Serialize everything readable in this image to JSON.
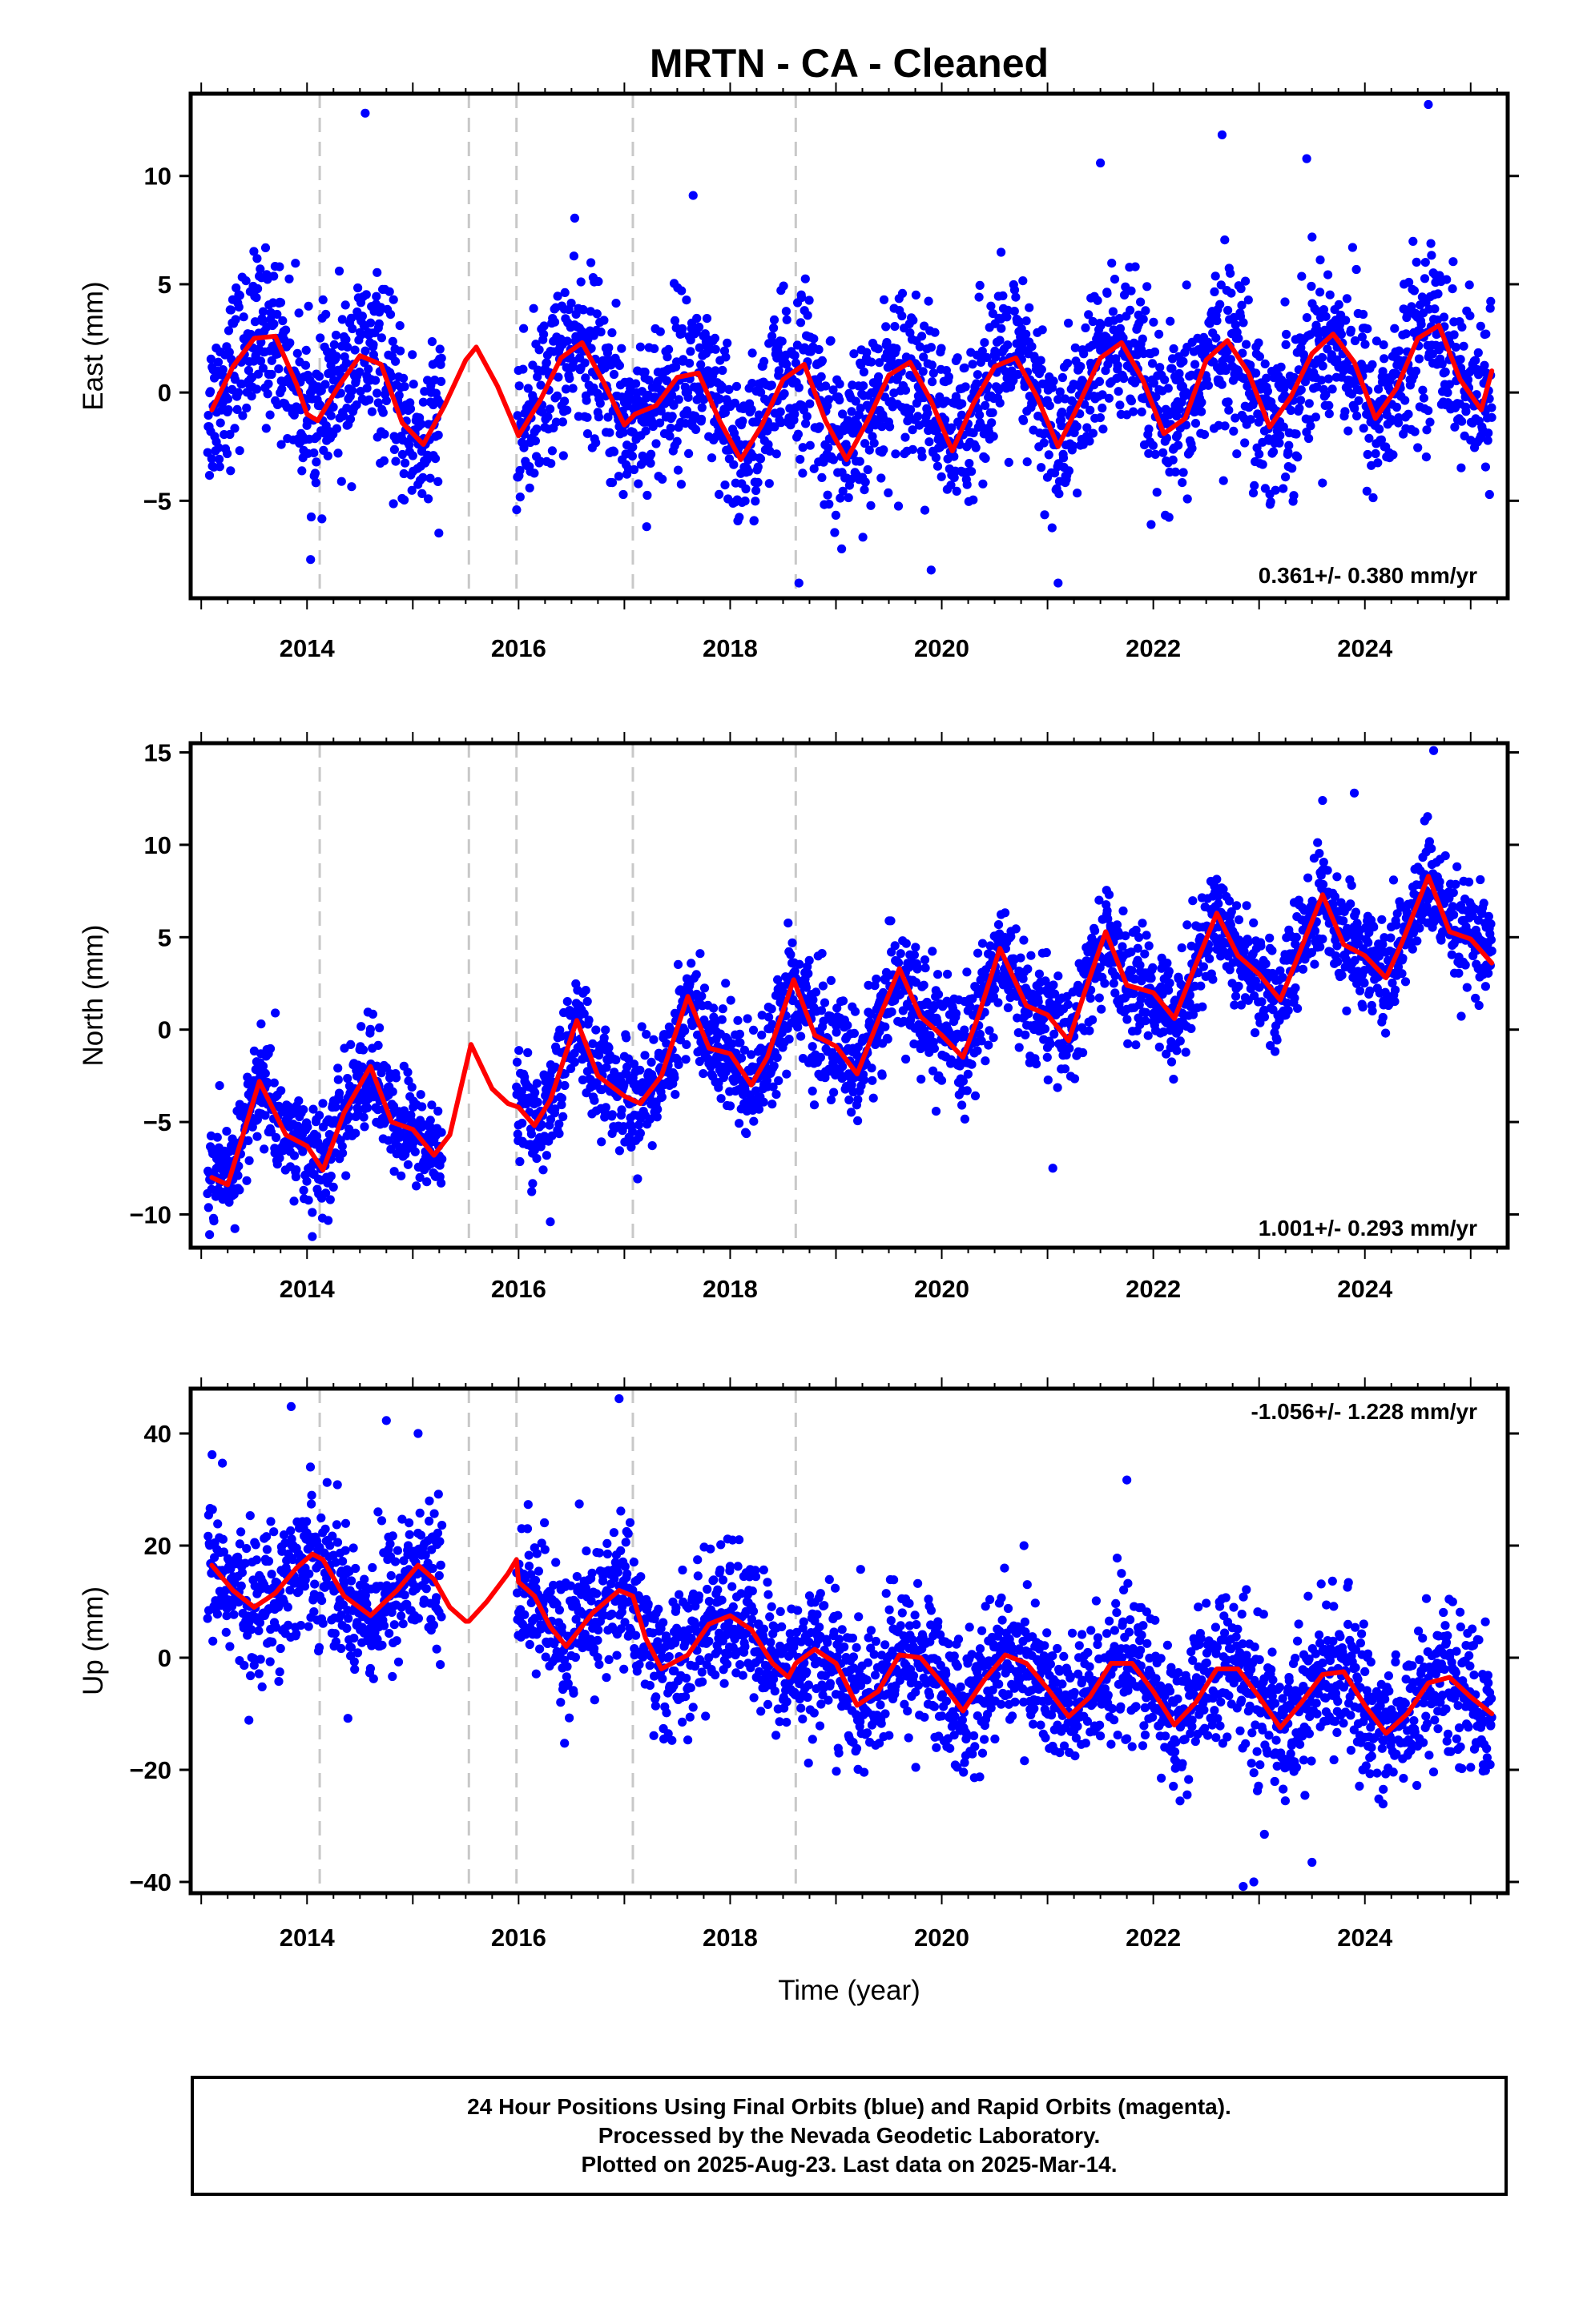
{
  "title": "MRTN  - CA - Cleaned",
  "xlabel": "Time (year)",
  "caption": [
    "24 Hour Positions Using Final Orbits (blue) and Rapid Orbits (magenta).",
    "Processed by the Nevada Geodetic Laboratory.",
    "Plotted on 2025-Aug-23. Last data on 2025-Mar-14."
  ],
  "colors": {
    "points": "#0000ff",
    "fit": "#ff0000",
    "breaks": "#c8c8c8",
    "frame": "#000000"
  },
  "chart_data": [
    {
      "type": "scatter",
      "ylabel": "East (mm)",
      "rate_label": "0.361+/- 0.380 mm/yr",
      "xlim": [
        2012.9,
        2025.35
      ],
      "ylim": [
        -9.5,
        13.8
      ],
      "yticks": [
        -5,
        0,
        5,
        10
      ],
      "ytick_labels": [
        "−5",
        "0",
        "5",
        "10"
      ],
      "xticks": [
        2014,
        2016,
        2018,
        2020,
        2022,
        2024
      ],
      "xtick_labels": [
        "2014",
        "2016",
        "2018",
        "2020",
        "2022",
        "2024"
      ],
      "breaks": [
        2014.12,
        2015.53,
        2015.98,
        2017.08,
        2018.62
      ],
      "fit": {
        "x": [
          2013.1,
          2013.3,
          2013.5,
          2013.7,
          2013.9,
          2014.0,
          2014.1,
          2014.3,
          2014.5,
          2014.7,
          2014.9,
          2015.1,
          2015.3,
          2015.5,
          2015.6,
          2015.8,
          2016.0,
          2016.2,
          2016.4,
          2016.6,
          2016.8,
          2017.0,
          2017.1,
          2017.3,
          2017.5,
          2017.7,
          2017.9,
          2018.1,
          2018.3,
          2018.5,
          2018.7,
          2018.9,
          2019.1,
          2019.3,
          2019.5,
          2019.7,
          2019.9,
          2020.1,
          2020.3,
          2020.5,
          2020.7,
          2020.9,
          2021.1,
          2021.3,
          2021.5,
          2021.7,
          2021.9,
          2022.1,
          2022.3,
          2022.5,
          2022.7,
          2022.9,
          2023.1,
          2023.3,
          2023.5,
          2023.7,
          2023.9,
          2024.1,
          2024.3,
          2024.5,
          2024.7,
          2024.9,
          2025.1,
          2025.2
        ],
        "y": [
          -0.8,
          1.2,
          2.5,
          2.6,
          0.4,
          -1.0,
          -1.3,
          0.3,
          1.7,
          1.3,
          -1.4,
          -2.4,
          -0.6,
          1.5,
          2.1,
          0.3,
          -2.0,
          -0.4,
          1.6,
          2.3,
          0.5,
          -1.5,
          -1.0,
          -0.6,
          0.7,
          0.9,
          -1.3,
          -3.1,
          -1.5,
          0.6,
          1.3,
          -1.3,
          -3.1,
          -1.3,
          0.8,
          1.4,
          -0.4,
          -2.7,
          -0.5,
          1.2,
          1.6,
          -0.2,
          -2.5,
          -0.5,
          1.6,
          2.3,
          0.6,
          -1.9,
          -1.2,
          1.5,
          2.4,
          0.9,
          -1.6,
          -0.2,
          1.8,
          2.7,
          1.4,
          -1.2,
          0.2,
          2.5,
          3.1,
          0.6,
          -0.8,
          1.0
        ]
      },
      "scatter": {
        "count": 2900,
        "noise_sd": 1.9,
        "first": 2013.06,
        "last": 2025.2,
        "gap": [
          2015.28,
          2015.98
        ],
        "outliers": [
          [
            2014.55,
            12.9
          ],
          [
            2021.5,
            10.6
          ],
          [
            2022.65,
            11.9
          ],
          [
            2024.6,
            13.3
          ],
          [
            2023.45,
            10.8
          ],
          [
            2017.65,
            9.1
          ],
          [
            2018.65,
            -8.8
          ],
          [
            2021.1,
            -8.8
          ],
          [
            2019.9,
            -8.2
          ]
        ]
      }
    },
    {
      "type": "scatter",
      "ylabel": "North (mm)",
      "rate_label": "1.001+/- 0.293 mm/yr",
      "xlim": [
        2012.9,
        2025.35
      ],
      "ylim": [
        -11.8,
        15.5
      ],
      "yticks": [
        -10,
        -5,
        0,
        5,
        10,
        15
      ],
      "ytick_labels": [
        "−10",
        "−5",
        "0",
        "5",
        "10",
        "15"
      ],
      "xticks": [
        2014,
        2016,
        2018,
        2020,
        2022,
        2024
      ],
      "xtick_labels": [
        "2014",
        "2016",
        "2018",
        "2020",
        "2022",
        "2024"
      ],
      "breaks": [
        2014.12,
        2015.53,
        2015.98,
        2017.08,
        2018.62
      ],
      "fit": {
        "x": [
          2013.1,
          2013.25,
          2013.55,
          2013.8,
          2014.0,
          2014.15,
          2014.35,
          2014.6,
          2014.8,
          2015.0,
          2015.2,
          2015.35,
          2015.55,
          2015.75,
          2015.9,
          2016.0,
          2016.15,
          2016.3,
          2016.55,
          2016.75,
          2017.0,
          2017.15,
          2017.35,
          2017.6,
          2017.8,
          2018.0,
          2018.2,
          2018.35,
          2018.6,
          2018.8,
          2019.0,
          2019.2,
          2019.4,
          2019.6,
          2019.8,
          2020.0,
          2020.2,
          2020.35,
          2020.55,
          2020.8,
          2021.0,
          2021.2,
          2021.35,
          2021.55,
          2021.75,
          2022.0,
          2022.2,
          2022.35,
          2022.6,
          2022.8,
          2023.0,
          2023.2,
          2023.35,
          2023.6,
          2023.8,
          2024.0,
          2024.2,
          2024.35,
          2024.6,
          2024.8,
          2025.0,
          2025.2
        ],
        "y": [
          -8.0,
          -8.4,
          -2.8,
          -5.7,
          -6.3,
          -7.6,
          -4.5,
          -2.0,
          -5.0,
          -5.4,
          -6.8,
          -5.7,
          -0.8,
          -3.2,
          -4.0,
          -4.2,
          -5.2,
          -3.8,
          0.5,
          -2.5,
          -3.6,
          -4.0,
          -2.5,
          1.8,
          -1.0,
          -1.3,
          -3.0,
          -1.5,
          2.7,
          -0.3,
          -0.9,
          -2.4,
          0.5,
          3.3,
          0.7,
          -0.3,
          -1.5,
          0.8,
          4.4,
          1.3,
          0.8,
          -0.6,
          2.0,
          5.3,
          2.4,
          2.0,
          0.6,
          2.8,
          6.3,
          4.0,
          3.0,
          1.6,
          3.7,
          7.3,
          4.6,
          4.0,
          2.8,
          4.7,
          8.3,
          5.3,
          4.9,
          3.6
        ]
      },
      "scatter": {
        "count": 2900,
        "noise_sd": 1.45,
        "first": 2013.06,
        "last": 2025.2,
        "gap": [
          2015.28,
          2015.98
        ],
        "outliers": [
          [
            2024.65,
            15.1
          ],
          [
            2023.9,
            12.8
          ],
          [
            2023.6,
            12.4
          ],
          [
            2016.3,
            -10.4
          ],
          [
            2014.05,
            -11.2
          ],
          [
            2021.05,
            -7.5
          ],
          [
            2013.7,
            0.9
          ]
        ]
      }
    },
    {
      "type": "scatter",
      "ylabel": "Up (mm)",
      "rate_label": "-1.056+/- 1.228 mm/yr",
      "xlim": [
        2012.9,
        2025.35
      ],
      "ylim": [
        -42,
        48
      ],
      "yticks": [
        -40,
        -20,
        0,
        20,
        40
      ],
      "ytick_labels": [
        "−40",
        "−20",
        "0",
        "20",
        "40"
      ],
      "xticks": [
        2014,
        2016,
        2018,
        2020,
        2022,
        2024
      ],
      "xtick_labels": [
        "2014",
        "2016",
        "2018",
        "2020",
        "2022",
        "2024"
      ],
      "breaks": [
        2014.12,
        2015.53,
        2015.98,
        2017.08,
        2018.62
      ],
      "fit": {
        "x": [
          2013.1,
          2013.3,
          2013.5,
          2013.7,
          2013.9,
          2014.05,
          2014.15,
          2014.35,
          2014.6,
          2014.85,
          2015.05,
          2015.2,
          2015.35,
          2015.5,
          2015.53,
          2015.7,
          2015.9,
          2015.98,
          2016.0,
          2016.15,
          2016.3,
          2016.45,
          2016.7,
          2016.95,
          2017.08,
          2017.2,
          2017.35,
          2017.6,
          2017.8,
          2018.0,
          2018.2,
          2018.4,
          2018.55,
          2018.62,
          2018.8,
          2019.0,
          2019.2,
          2019.4,
          2019.6,
          2019.8,
          2020.0,
          2020.2,
          2020.4,
          2020.6,
          2020.8,
          2021.0,
          2021.2,
          2021.4,
          2021.6,
          2021.8,
          2022.0,
          2022.2,
          2022.4,
          2022.6,
          2022.8,
          2023.0,
          2023.2,
          2023.4,
          2023.6,
          2023.8,
          2024.0,
          2024.2,
          2024.4,
          2024.6,
          2024.8,
          2025.0,
          2025.2
        ],
        "y": [
          16.5,
          12.0,
          9.0,
          11.5,
          16.0,
          18.5,
          17.5,
          11.0,
          7.5,
          12.0,
          16.5,
          14.0,
          9.0,
          6.5,
          6.5,
          10.0,
          15.0,
          17.5,
          13.5,
          11.0,
          5.5,
          2.0,
          8.0,
          12.0,
          11.0,
          3.5,
          -2.0,
          0.5,
          6.0,
          7.5,
          5.0,
          -1.0,
          -3.5,
          -1.0,
          1.5,
          -1.0,
          -8.5,
          -6.0,
          0.5,
          0.0,
          -4.5,
          -9.5,
          -4.0,
          0.5,
          -1.0,
          -5.5,
          -10.5,
          -7.0,
          -1.0,
          -1.0,
          -6.0,
          -12.0,
          -8.0,
          -2.0,
          -2.0,
          -7.0,
          -12.5,
          -8.0,
          -3.0,
          -2.5,
          -8.5,
          -13.5,
          -10.0,
          -4.5,
          -3.5,
          -7.0,
          -10.0
        ]
      },
      "scatter": {
        "count": 2900,
        "noise_sd": 6.3,
        "first": 2013.06,
        "last": 2025.2,
        "gap": [
          2015.28,
          2015.98
        ],
        "outliers": [
          [
            2013.85,
            44.8
          ],
          [
            2014.75,
            42.3
          ],
          [
            2016.95,
            46.2
          ],
          [
            2015.05,
            40.0
          ],
          [
            2022.95,
            -40.0
          ],
          [
            2022.85,
            -40.8
          ],
          [
            2023.05,
            -31.5
          ],
          [
            2023.5,
            -36.5
          ],
          [
            2021.75,
            31.7
          ],
          [
            2013.2,
            34.7
          ]
        ]
      }
    }
  ]
}
